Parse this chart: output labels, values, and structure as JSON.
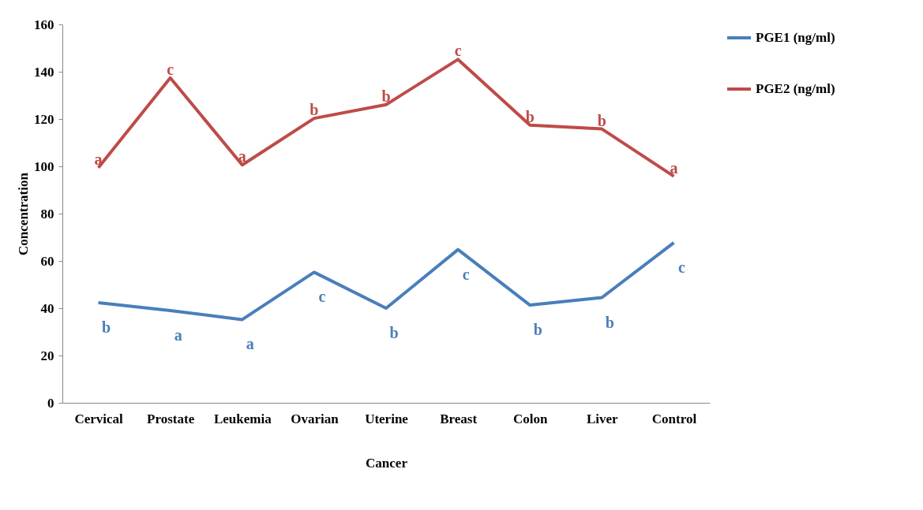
{
  "chart_data": {
    "type": "line",
    "xlabel": "Cancer",
    "ylabel": "Concentration",
    "categories": [
      "Cervical",
      "Prostate",
      "Leukemia",
      "Ovarian",
      "Uterine",
      "Breast",
      "Colon",
      "Liver",
      "Control"
    ],
    "series": [
      {
        "name": "PGE1 (ng/ml)",
        "color": "#4a7ebb",
        "values": [
          42.3,
          39,
          35.2,
          55.2,
          40,
          64.8,
          41.3,
          44.5,
          67.7
        ]
      },
      {
        "name": "PGE2 (ng/ml)",
        "color": "#be4b48",
        "values": [
          99.4,
          137.4,
          100.6,
          120.3,
          126.1,
          145.2,
          117.4,
          115.8,
          95.8
        ]
      }
    ],
    "ylim": [
      0,
      160
    ],
    "yticks": [
      0,
      20,
      40,
      60,
      80,
      100,
      120,
      140,
      160
    ],
    "grid": false,
    "legend": "right",
    "annotations": [
      {
        "text": "a",
        "x": "Cervical",
        "y": 99.4
      },
      {
        "text": "c",
        "x": "Prostate",
        "y": 137.4
      },
      {
        "text": "a",
        "x": "Leukemia",
        "y": 100.6
      },
      {
        "text": "b",
        "x": "Ovarian",
        "y": 120.3
      },
      {
        "text": "b",
        "x": "Uterine",
        "y": 126.1
      },
      {
        "text": "c",
        "x": "Breast",
        "y": 145.2
      },
      {
        "text": "b",
        "x": "Colon",
        "y": 117.4
      },
      {
        "text": "b",
        "x": "Liver",
        "y": 115.8
      },
      {
        "text": "a",
        "x": "Control",
        "y": 95.8
      },
      {
        "text": "b",
        "x": "Cervical",
        "y": 42.3
      },
      {
        "text": "a",
        "x": "Prostate",
        "y": 39
      },
      {
        "text": "a",
        "x": "Leukemia",
        "y": 35.2
      },
      {
        "text": "c",
        "x": "Ovarian",
        "y": 55.2
      },
      {
        "text": "b",
        "x": "Uterine",
        "y": 40
      },
      {
        "text": "c",
        "x": "Breast",
        "y": 64.8
      },
      {
        "text": "b",
        "x": "Colon",
        "y": 41.3
      },
      {
        "text": "b",
        "x": "Liver",
        "y": 44.5
      },
      {
        "text": "c",
        "x": "Control",
        "y": 67.7
      }
    ]
  }
}
